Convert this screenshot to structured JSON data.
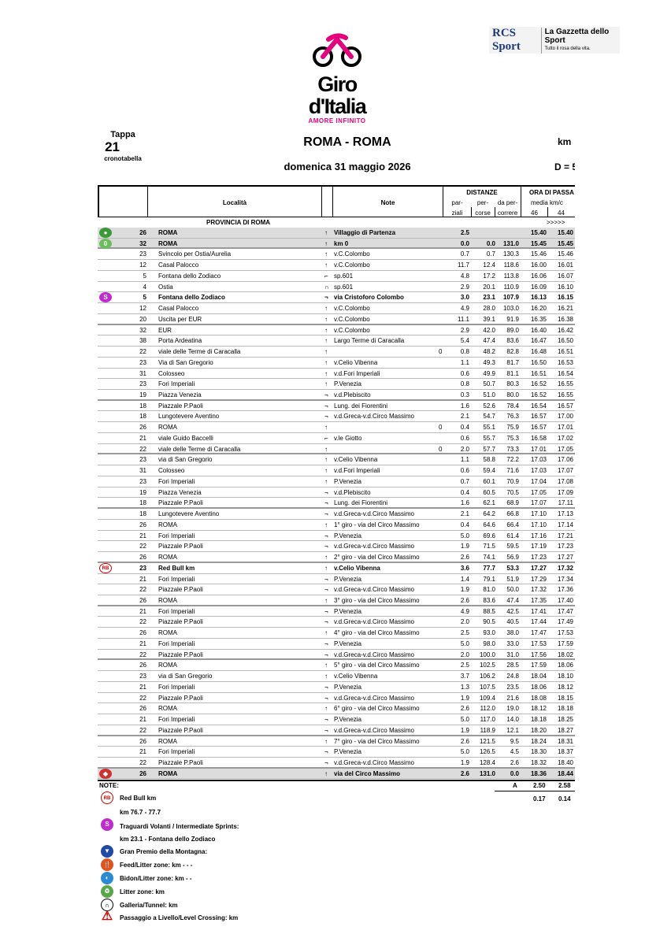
{
  "header": {
    "logo_text": "Giro d'Italia",
    "logo_tagline": "AMORE INFINITO",
    "sponsor_1": "RCS Sport",
    "sponsor_2": "La Gazzetta dello Sport",
    "sponsor_2_tagline": "Tutto il rosa della vita.",
    "tappa_label": "Tappa",
    "tappa_number": "21",
    "tappa_sub": "cronotabella",
    "title": "ROMA - ROMA",
    "date": "domenica 31 maggio 2026",
    "km_label": "km",
    "d_label": "D = 5"
  },
  "colors": {
    "giro_pink": "#e6007e",
    "shade": "#dcdcdc"
  },
  "table_header": {
    "localita": "Località",
    "note": "Note",
    "distanze": "DISTANZE",
    "parziali_1": "par-",
    "parziali_2": "ziali",
    "percorse_1": "per-",
    "percorse_2": "corse",
    "dapercorrere_1": "da per-",
    "dapercorrere_2": "correre",
    "ora": "ORA DI PASSA",
    "media": "media km/c",
    "speed_1": "46",
    "speed_2": "44",
    "province": "PROVINCIA DI ROMA",
    "arrows": ">>>>>"
  },
  "rows": [
    {
      "icon": "start-icon",
      "alt": "26",
      "loc": "ROMA",
      "dir": "↑",
      "note": "Villaggio di Partenza",
      "flag": "",
      "p": "2.5",
      "pc": "",
      "r": "",
      "t1": "15.40",
      "t2": "15.40",
      "bold": true,
      "shade": true
    },
    {
      "icon": "km0-icon",
      "alt": "32",
      "loc": "ROMA",
      "dir": "↑",
      "note": "km 0",
      "flag": "",
      "p": "0.0",
      "pc": "0.0",
      "r": "131.0",
      "t1": "15.45",
      "t2": "15.45",
      "bold": true,
      "shade": true
    },
    {
      "alt": "23",
      "loc": "Svincolo per Ostia/Aurelia",
      "dir": "↑",
      "note": "v.C.Colombo",
      "p": "0.7",
      "pc": "0.7",
      "r": "130.3",
      "t1": "15.46",
      "t2": "15.46"
    },
    {
      "alt": "12",
      "loc": "Casal Palocco",
      "dir": "↑",
      "note": "v.C.Colombo",
      "p": "11.7",
      "pc": "12.4",
      "r": "118.6",
      "t1": "16.00",
      "t2": "16.01"
    },
    {
      "alt": "5",
      "loc": "Fontana dello Zodiaco",
      "dir": "⌐",
      "note": "sp.601",
      "p": "4.8",
      "pc": "17.2",
      "r": "113.8",
      "t1": "16.06",
      "t2": "16.07"
    },
    {
      "alt": "4",
      "loc": "Ostia",
      "dir": "∩",
      "note": "sp.601",
      "p": "2.9",
      "pc": "20.1",
      "r": "110.9",
      "t1": "16.09",
      "t2": "16.10"
    },
    {
      "icon": "sprint-icon",
      "alt": "5",
      "loc": "Fontana dello Zodiaco",
      "dir": "¬",
      "note": "via Cristoforo Colombo",
      "p": "3.0",
      "pc": "23.1",
      "r": "107.9",
      "t1": "16.13",
      "t2": "16.15",
      "bold": true
    },
    {
      "alt": "12",
      "loc": "Casal Palocco",
      "dir": "↑",
      "note": "v.C.Colombo",
      "p": "4.9",
      "pc": "28.0",
      "r": "103.0",
      "t1": "16.20",
      "t2": "16.21"
    },
    {
      "alt": "20",
      "loc": "Uscita per EUR",
      "dir": "↑",
      "note": "v.C.Colombo",
      "p": "11.1",
      "pc": "39.1",
      "r": "91.9",
      "t1": "16.35",
      "t2": "16.38"
    },
    {
      "alt": "32",
      "loc": "EUR",
      "dir": "↑",
      "note": "v.C.Colombo",
      "p": "2.9",
      "pc": "42.0",
      "r": "89.0",
      "t1": "16.40",
      "t2": "16.42"
    },
    {
      "alt": "38",
      "loc": "Porta Ardeatina",
      "dir": "↑",
      "note": "Largo Terme di Caracalla",
      "p": "5.4",
      "pc": "47.4",
      "r": "83.6",
      "t1": "16.47",
      "t2": "16.50"
    },
    {
      "alt": "22",
      "loc": "viale delle Terme di Caracalla",
      "dir": "↑",
      "note": "",
      "flag": "0",
      "p": "0.8",
      "pc": "48.2",
      "r": "82.8",
      "t1": "16.48",
      "t2": "16.51"
    },
    {
      "alt": "23",
      "loc": "Via di San Gregorio",
      "dir": "↑",
      "note": "v.Celio Vibenna",
      "p": "1.1",
      "pc": "49.3",
      "r": "81.7",
      "t1": "16.50",
      "t2": "16.53"
    },
    {
      "alt": "31",
      "loc": "Colosseo",
      "dir": "↑",
      "note": "v.d.Fori Imperiali",
      "p": "0.6",
      "pc": "49.9",
      "r": "81.1",
      "t1": "16.51",
      "t2": "16.54"
    },
    {
      "alt": "23",
      "loc": "Fori Imperiali",
      "dir": "↑",
      "note": "P.Venezia",
      "p": "0.8",
      "pc": "50.7",
      "r": "80.3",
      "t1": "16.52",
      "t2": "16.55"
    },
    {
      "alt": "19",
      "loc": "Piazza Venezia",
      "dir": "¬",
      "note": "v.d.Plebiscito",
      "p": "0.3",
      "pc": "51.0",
      "r": "80.0",
      "t1": "16.52",
      "t2": "16.55"
    },
    {
      "alt": "18",
      "loc": "Piazzale P.Paoli",
      "dir": "¬",
      "note": "Lung. dei Fiorentini",
      "p": "1.6",
      "pc": "52.6",
      "r": "78.4",
      "t1": "16.54",
      "t2": "16.57"
    },
    {
      "alt": "18",
      "loc": "Lungotevere Aventino",
      "dir": "¬",
      "note": "v.d.Greca-v.d.Circo Massimo",
      "p": "2.1",
      "pc": "54.7",
      "r": "76.3",
      "t1": "16.57",
      "t2": "17.00"
    },
    {
      "alt": "26",
      "loc": "ROMA",
      "dir": "↑",
      "note": "",
      "flag": "0",
      "p": "0.4",
      "pc": "55.1",
      "r": "75.9",
      "t1": "16.57",
      "t2": "17.01"
    },
    {
      "alt": "21",
      "loc": "viale Guido Baccelli",
      "dir": "⌐",
      "note": "v.le Giotto",
      "p": "0.6",
      "pc": "55.7",
      "r": "75.3",
      "t1": "16.58",
      "t2": "17.02"
    },
    {
      "alt": "22",
      "loc": "viale delle Terme di Caracalla",
      "dir": "↑",
      "note": "",
      "flag": "0",
      "p": "2.0",
      "pc": "57.7",
      "r": "73.3",
      "t1": "17.01",
      "t2": "17.05"
    },
    {
      "alt": "23",
      "loc": "via di San Gregorio",
      "dir": "↑",
      "note": "v.Celio Vibenna",
      "p": "1.1",
      "pc": "58.8",
      "r": "72.2",
      "t1": "17.03",
      "t2": "17.06"
    },
    {
      "alt": "31",
      "loc": "Colosseo",
      "dir": "↑",
      "note": "v.d.Fori Imperiali",
      "p": "0.6",
      "pc": "59.4",
      "r": "71.6",
      "t1": "17.03",
      "t2": "17.07"
    },
    {
      "alt": "23",
      "loc": "Fori Imperiali",
      "dir": "↑",
      "note": "P.Venezia",
      "p": "0.7",
      "pc": "60.1",
      "r": "70.9",
      "t1": "17.04",
      "t2": "17.08"
    },
    {
      "alt": "19",
      "loc": "Piazza Venezia",
      "dir": "¬",
      "note": "v.d.Plebiscito",
      "p": "0.4",
      "pc": "60.5",
      "r": "70.5",
      "t1": "17.05",
      "t2": "17.09"
    },
    {
      "alt": "18",
      "loc": "Piazzale P.Paoli",
      "dir": "¬",
      "note": "Lung. dei Fiorentini",
      "p": "1.6",
      "pc": "62.1",
      "r": "68.9",
      "t1": "17.07",
      "t2": "17.11"
    },
    {
      "alt": "18",
      "loc": "Lungotevere Aventino",
      "dir": "¬",
      "note": "v.d.Greca-v.d.Circo Massimo",
      "p": "2.1",
      "pc": "64.2",
      "r": "66.8",
      "t1": "17.10",
      "t2": "17.13"
    },
    {
      "alt": "26",
      "loc": "ROMA",
      "dir": "↑",
      "note": "1° giro - via del Circo Massimo",
      "p": "0.4",
      "pc": "64.6",
      "r": "66.4",
      "t1": "17.10",
      "t2": "17.14"
    },
    {
      "alt": "21",
      "loc": "Fori Imperiali",
      "dir": "¬",
      "note": "P.Venezia",
      "p": "5.0",
      "pc": "69.6",
      "r": "61.4",
      "t1": "17.16",
      "t2": "17.21"
    },
    {
      "alt": "22",
      "loc": "Piazzale P.Paoli",
      "dir": "¬",
      "note": "v.d.Greca-v.d.Circo Massimo",
      "p": "1.9",
      "pc": "71.5",
      "r": "59.5",
      "t1": "17.19",
      "t2": "17.23"
    },
    {
      "alt": "26",
      "loc": "ROMA",
      "dir": "↑",
      "note": "2° giro - via del Circo Massimo",
      "p": "2.6",
      "pc": "74.1",
      "r": "56.9",
      "t1": "17.23",
      "t2": "17.27"
    },
    {
      "icon": "redbull-icon",
      "alt": "23",
      "loc": "Red Bull km",
      "dir": "↑",
      "note": "v.Celio Vibenna",
      "p": "3.6",
      "pc": "77.7",
      "r": "53.3",
      "t1": "17.27",
      "t2": "17.32",
      "bold": true
    },
    {
      "alt": "21",
      "loc": "Fori Imperiali",
      "dir": "¬",
      "note": "P.Venezia",
      "p": "1.4",
      "pc": "79.1",
      "r": "51.9",
      "t1": "17.29",
      "t2": "17.34"
    },
    {
      "alt": "22",
      "loc": "Piazzale P.Paoli",
      "dir": "¬",
      "note": "v.d.Greca-v.d.Circo Massimo",
      "p": "1.9",
      "pc": "81.0",
      "r": "50.0",
      "t1": "17.32",
      "t2": "17.36"
    },
    {
      "alt": "26",
      "loc": "ROMA",
      "dir": "↑",
      "note": "3° giro - via del Circo Massimo",
      "p": "2.6",
      "pc": "83.6",
      "r": "47.4",
      "t1": "17.35",
      "t2": "17.40"
    },
    {
      "alt": "21",
      "loc": "Fori Imperiali",
      "dir": "¬",
      "note": "P.Venezia",
      "p": "4.9",
      "pc": "88.5",
      "r": "42.5",
      "t1": "17.41",
      "t2": "17.47"
    },
    {
      "alt": "22",
      "loc": "Piazzale P.Paoli",
      "dir": "¬",
      "note": "v.d.Greca-v.d.Circo Massimo",
      "p": "2.0",
      "pc": "90.5",
      "r": "40.5",
      "t1": "17.44",
      "t2": "17.49"
    },
    {
      "alt": "26",
      "loc": "ROMA",
      "dir": "↑",
      "note": "4° giro - via del Circo Massimo",
      "p": "2.5",
      "pc": "93.0",
      "r": "38.0",
      "t1": "17.47",
      "t2": "17.53"
    },
    {
      "alt": "21",
      "loc": "Fori Imperiali",
      "dir": "¬",
      "note": "P.Venezia",
      "p": "5.0",
      "pc": "98.0",
      "r": "33.0",
      "t1": "17.53",
      "t2": "17.59"
    },
    {
      "alt": "22",
      "loc": "Piazzale P.Paoli",
      "dir": "¬",
      "note": "v.d.Greca-v.d.Circo Massimo",
      "p": "2.0",
      "pc": "100.0",
      "r": "31.0",
      "t1": "17.56",
      "t2": "18.02"
    },
    {
      "alt": "26",
      "loc": "ROMA",
      "dir": "↑",
      "note": "5° giro - via del Circo Massimo",
      "p": "2.5",
      "pc": "102.5",
      "r": "28.5",
      "t1": "17.59",
      "t2": "18.06"
    },
    {
      "alt": "23",
      "loc": "via di San Gregorio",
      "dir": "↑",
      "note": "v.Celio Vibenna",
      "p": "3.7",
      "pc": "106.2",
      "r": "24.8",
      "t1": "18.04",
      "t2": "18.10"
    },
    {
      "alt": "21",
      "loc": "Fori Imperiali",
      "dir": "¬",
      "note": "P.Venezia",
      "p": "1.3",
      "pc": "107.5",
      "r": "23.5",
      "t1": "18.06",
      "t2": "18.12"
    },
    {
      "alt": "22",
      "loc": "Piazzale P.Paoli",
      "dir": "¬",
      "note": "v.d.Greca-v.d.Circo Massimo",
      "p": "1.9",
      "pc": "109.4",
      "r": "21.6",
      "t1": "18.08",
      "t2": "18.15"
    },
    {
      "alt": "26",
      "loc": "ROMA",
      "dir": "↑",
      "note": "6° giro - via del Circo Massimo",
      "p": "2.6",
      "pc": "112.0",
      "r": "19.0",
      "t1": "18.12",
      "t2": "18.18"
    },
    {
      "alt": "21",
      "loc": "Fori Imperiali",
      "dir": "¬",
      "note": "P.Venezia",
      "p": "5.0",
      "pc": "117.0",
      "r": "14.0",
      "t1": "18.18",
      "t2": "18.25"
    },
    {
      "alt": "22",
      "loc": "Piazzale P.Paoli",
      "dir": "¬",
      "note": "v.d.Greca-v.d.Circo Massimo",
      "p": "1.9",
      "pc": "118.9",
      "r": "12.1",
      "t1": "18.20",
      "t2": "18.27"
    },
    {
      "alt": "26",
      "loc": "ROMA",
      "dir": "↑",
      "note": "7° giro - via del Circo Massimo",
      "p": "2.6",
      "pc": "121.5",
      "r": "9.5",
      "t1": "18.24",
      "t2": "18.31"
    },
    {
      "alt": "21",
      "loc": "Fori Imperiali",
      "dir": "¬",
      "note": "P.Venezia",
      "p": "5.0",
      "pc": "126.5",
      "r": "4.5",
      "t1": "18.30",
      "t2": "18.37"
    },
    {
      "alt": "22",
      "loc": "Piazzale P.Paoli",
      "dir": "¬",
      "note": "v.d.Greca-v.d.Circo Massimo",
      "p": "1.9",
      "pc": "128.4",
      "r": "2.6",
      "t1": "18.32",
      "t2": "18.40"
    },
    {
      "icon": "finish-icon",
      "alt": "26",
      "loc": "ROMA",
      "dir": "↑",
      "note": "via del Circo Massimo",
      "p": "2.6",
      "pc": "131.0",
      "r": "0.0",
      "t1": "18.36",
      "t2": "18.44",
      "bold": true,
      "shade": true
    }
  ],
  "notes": {
    "label": "NOTE:",
    "a_label": "A",
    "a_1": "2.50",
    "a_2": "2.58",
    "redbull_label": "Red Bull km",
    "redbull_1": "0.17",
    "redbull_2": "0.14",
    "redbull_km": "km 76.7 - 77.7",
    "sprint_label": "Traguardi Volanti / Intermediate Sprints:",
    "sprint_km": "km 23.1 - Fontana dello Zodiaco",
    "gpm_label": "Gran Premio della Montagna:",
    "feed_label": "Feed/Litter zone: km  - - -",
    "bidon_label": "Bidon/Litter zone: km  -  -",
    "litter_label": "Litter zone: km",
    "tunnel_label": "Galleria/Tunnel:  km",
    "crossing_label": "Passaggio a Livello/Level Crossing:  km"
  }
}
